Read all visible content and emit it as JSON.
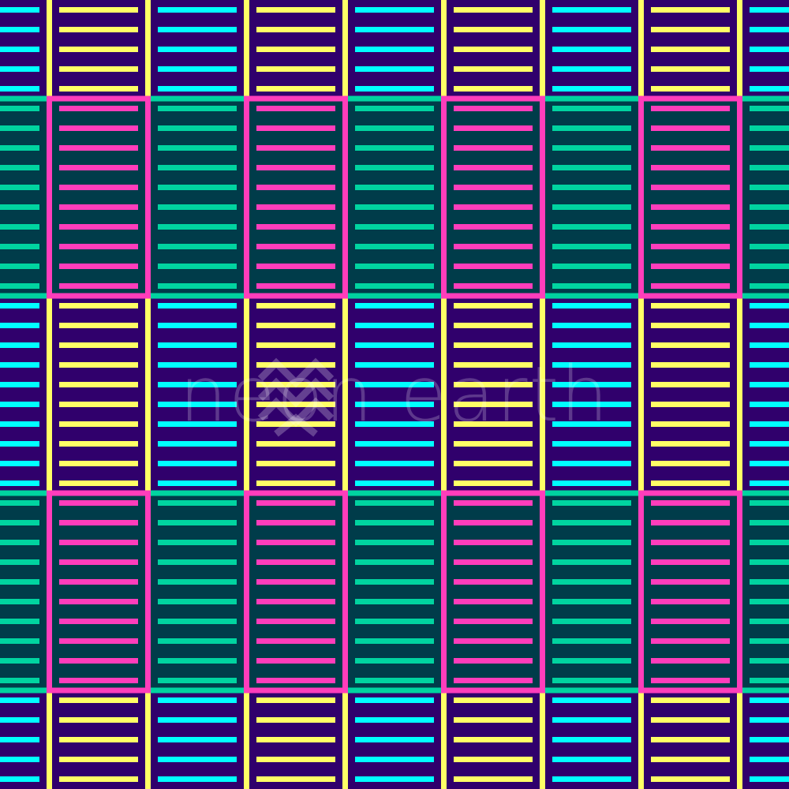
{
  "pattern": {
    "colors": {
      "purple_band": "#30006c",
      "teal_band": "#003c4a",
      "cyan_bar": "#00ffff",
      "yellow_bar": "#ffff66",
      "green_bar": "#00d4a0",
      "pink_bar": "#ff3dbb",
      "yellow_line": "#ffff66",
      "pink_line": "#ff3dbb",
      "green_line": "#00d4a0"
    }
  },
  "watermark": {
    "text": "neon earth",
    "logo_icon": "chevron-diamond-logo"
  }
}
